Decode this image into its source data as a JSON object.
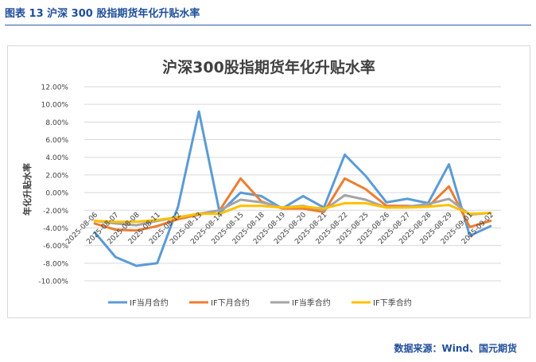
{
  "figure_label": "图表 13  沪深 300 股指期货年化升贴水率",
  "source_text": "数据来源：Wind、国元期货",
  "colors": {
    "header": "#1f4e9a",
    "grid": "#d9d9d9",
    "axis_text": "#404040"
  },
  "chart_data": {
    "type": "line",
    "title": "沪深300股指期货年化升贴水率",
    "ylabel": "年化升贴水率",
    "xlabel": "",
    "ylim": [
      -0.1,
      0.12
    ],
    "y_ticks": [
      "12.00%",
      "10.00%",
      "8.00%",
      "6.00%",
      "4.00%",
      "2.00%",
      "0.00%",
      "-2.00%",
      "-4.00%",
      "-6.00%",
      "-8.00%",
      "-10.00%"
    ],
    "y_tick_values": [
      0.12,
      0.1,
      0.08,
      0.06,
      0.04,
      0.02,
      0.0,
      -0.02,
      -0.04,
      -0.06,
      -0.08,
      -0.1
    ],
    "categories": [
      "2025-08-06",
      "2025-08-07",
      "2025-08-08",
      "2025-08-11",
      "2025-08-12",
      "2025-08-13",
      "2025-08-14",
      "2025-08-15",
      "2025-08-18",
      "2025-08-19",
      "2025-08-20",
      "2025-08-21",
      "2025-08-22",
      "2025-08-25",
      "2025-08-26",
      "2025-08-27",
      "2025-08-28",
      "2025-08-29",
      "2025-09-01",
      "2025-09-02"
    ],
    "grid": true,
    "legend_position": "bottom",
    "series": [
      {
        "name": "IF当月合约",
        "color": "#5b9bd5",
        "values": [
          -0.045,
          -0.073,
          -0.083,
          -0.08,
          -0.016,
          0.092,
          -0.023,
          0.0,
          -0.004,
          -0.018,
          -0.004,
          -0.017,
          0.043,
          0.019,
          -0.011,
          -0.007,
          -0.012,
          0.032,
          -0.049,
          -0.038
        ]
      },
      {
        "name": "IF下月合约",
        "color": "#ed7d31",
        "values": [
          -0.035,
          -0.042,
          -0.043,
          -0.038,
          -0.03,
          -0.025,
          -0.02,
          0.016,
          -0.01,
          -0.018,
          -0.018,
          -0.022,
          0.016,
          0.004,
          -0.015,
          -0.015,
          -0.016,
          0.007,
          -0.039,
          -0.032
        ]
      },
      {
        "name": "IF当季合约",
        "color": "#a5a5a5",
        "values": [
          -0.032,
          -0.035,
          -0.037,
          -0.032,
          -0.028,
          -0.024,
          -0.02,
          -0.008,
          -0.011,
          -0.017,
          -0.015,
          -0.02,
          -0.003,
          -0.008,
          -0.017,
          -0.016,
          -0.013,
          -0.007,
          -0.025,
          -0.023
        ]
      },
      {
        "name": "IF下季合约",
        "color": "#ffc000",
        "values": [
          -0.032,
          -0.033,
          -0.033,
          -0.031,
          -0.028,
          -0.024,
          -0.024,
          -0.015,
          -0.015,
          -0.017,
          -0.016,
          -0.018,
          -0.012,
          -0.012,
          -0.017,
          -0.017,
          -0.016,
          -0.014,
          -0.024,
          -0.023
        ]
      }
    ]
  }
}
